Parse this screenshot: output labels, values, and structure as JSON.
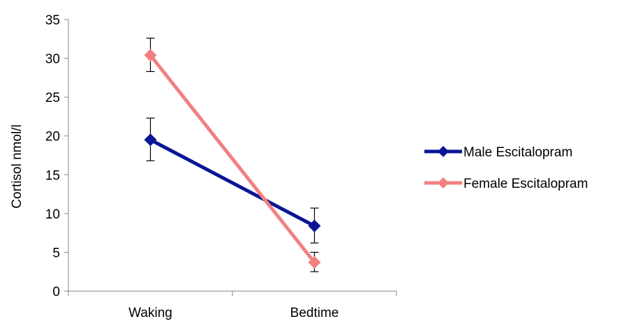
{
  "chart_data": {
    "type": "line",
    "title": "",
    "xlabel": "",
    "ylabel": "Cortisol nmol/l",
    "ylim": [
      0,
      35
    ],
    "yticks": [
      0,
      5,
      10,
      15,
      20,
      25,
      30,
      35
    ],
    "categories": [
      "Waking",
      "Bedtime"
    ],
    "grid": false,
    "legend_position": "right",
    "series": [
      {
        "name": "Male Escitalopram",
        "color": "#0a1596",
        "marker": "diamond",
        "values": [
          19.5,
          8.4
        ],
        "error_low": [
          16.8,
          6.2
        ],
        "error_high": [
          22.3,
          10.7
        ]
      },
      {
        "name": "Female Escitalopram",
        "color": "#f28080",
        "marker": "diamond",
        "values": [
          30.4,
          3.7
        ],
        "error_low": [
          28.3,
          2.5
        ],
        "error_high": [
          32.6,
          5.0
        ]
      }
    ]
  }
}
